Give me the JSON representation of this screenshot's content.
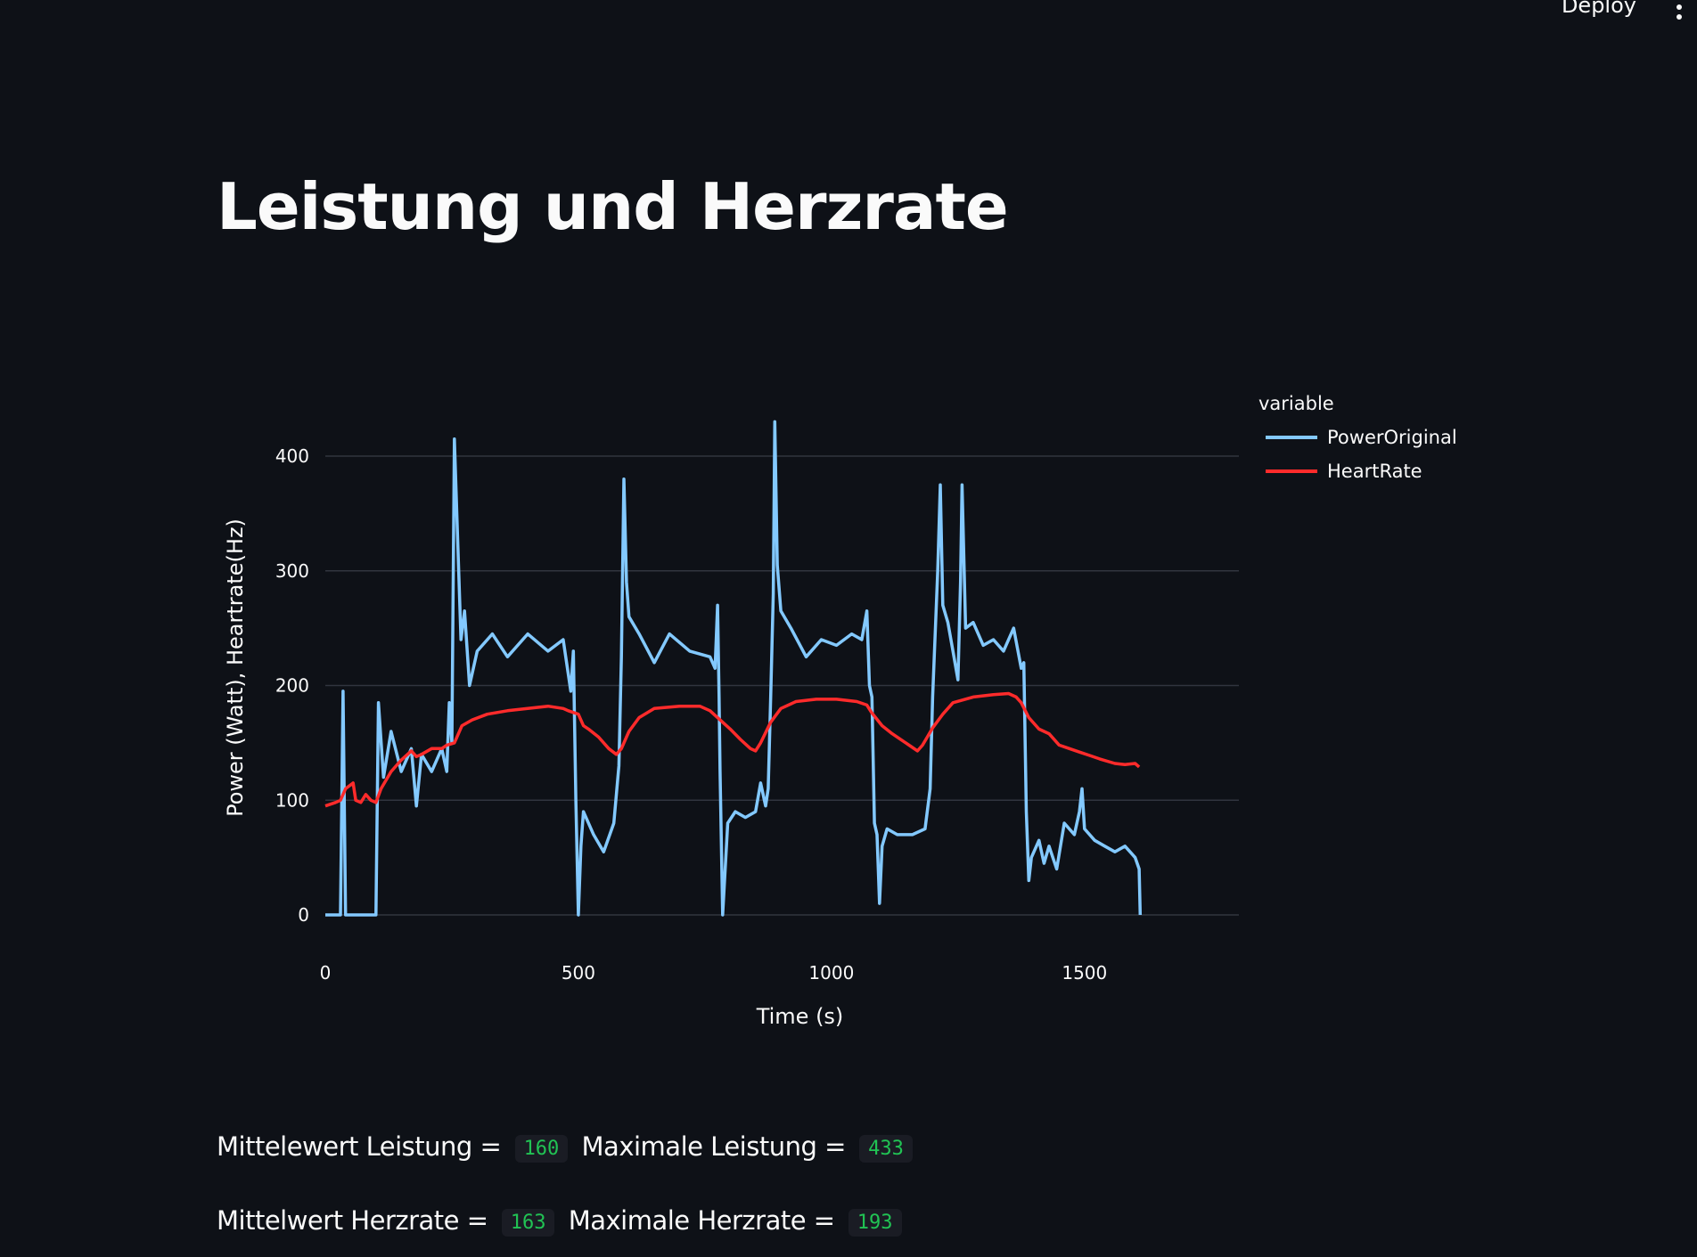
{
  "header": {
    "deploy_label": "Deploy",
    "menu_icon": "vertical-ellipsis-icon"
  },
  "page": {
    "title": "Leistung und Herzrate"
  },
  "stats": {
    "power_mean_label": "Mittelewert Leistung =",
    "power_mean_value": "160",
    "power_max_label": "Maximale Leistung =",
    "power_max_value": "433",
    "hr_mean_label": "Mittelwert Herzrate =",
    "hr_mean_value": "163",
    "hr_max_label": "Maximale Herzrate =",
    "hr_max_value": "193"
  },
  "colors": {
    "background": "#0e1117",
    "grid": "#31353f",
    "text": "#fafafa",
    "code_text": "#21c354"
  },
  "chart_data": {
    "type": "line",
    "xlabel": "Time (s)",
    "ylabel": "Power (Watt), Heartrate(Hz)",
    "xlim": [
      0,
      1805
    ],
    "ylim": [
      -18,
      440
    ],
    "xticks": [
      0,
      500,
      1000,
      1500
    ],
    "yticks": [
      0,
      100,
      200,
      300,
      400
    ],
    "grid": true,
    "legend_title": "variable",
    "legend_position": "top-right outside",
    "series": [
      {
        "name": "PowerOriginal",
        "color": "#83c9ff",
        "points": [
          [
            0,
            0
          ],
          [
            30,
            0
          ],
          [
            35,
            195
          ],
          [
            40,
            0
          ],
          [
            100,
            0
          ],
          [
            105,
            185
          ],
          [
            115,
            120
          ],
          [
            130,
            160
          ],
          [
            150,
            125
          ],
          [
            170,
            145
          ],
          [
            180,
            95
          ],
          [
            190,
            140
          ],
          [
            210,
            125
          ],
          [
            230,
            145
          ],
          [
            240,
            125
          ],
          [
            245,
            185
          ],
          [
            250,
            150
          ],
          [
            255,
            415
          ],
          [
            262,
            320
          ],
          [
            268,
            240
          ],
          [
            275,
            265
          ],
          [
            285,
            200
          ],
          [
            300,
            230
          ],
          [
            330,
            245
          ],
          [
            360,
            225
          ],
          [
            400,
            245
          ],
          [
            440,
            230
          ],
          [
            470,
            240
          ],
          [
            485,
            195
          ],
          [
            490,
            230
          ],
          [
            495,
            100
          ],
          [
            500,
            0
          ],
          [
            505,
            60
          ],
          [
            510,
            90
          ],
          [
            530,
            70
          ],
          [
            550,
            55
          ],
          [
            570,
            80
          ],
          [
            580,
            130
          ],
          [
            585,
            225
          ],
          [
            590,
            380
          ],
          [
            595,
            290
          ],
          [
            600,
            260
          ],
          [
            620,
            245
          ],
          [
            650,
            220
          ],
          [
            680,
            245
          ],
          [
            720,
            230
          ],
          [
            760,
            225
          ],
          [
            770,
            215
          ],
          [
            775,
            270
          ],
          [
            778,
            190
          ],
          [
            780,
            125
          ],
          [
            785,
            0
          ],
          [
            795,
            80
          ],
          [
            810,
            90
          ],
          [
            830,
            85
          ],
          [
            850,
            90
          ],
          [
            860,
            115
          ],
          [
            870,
            95
          ],
          [
            875,
            110
          ],
          [
            880,
            190
          ],
          [
            885,
            280
          ],
          [
            888,
            430
          ],
          [
            893,
            305
          ],
          [
            900,
            265
          ],
          [
            920,
            250
          ],
          [
            950,
            225
          ],
          [
            980,
            240
          ],
          [
            1010,
            235
          ],
          [
            1040,
            245
          ],
          [
            1060,
            240
          ],
          [
            1070,
            265
          ],
          [
            1075,
            200
          ],
          [
            1080,
            190
          ],
          [
            1085,
            80
          ],
          [
            1090,
            70
          ],
          [
            1095,
            10
          ],
          [
            1100,
            60
          ],
          [
            1110,
            75
          ],
          [
            1130,
            70
          ],
          [
            1160,
            70
          ],
          [
            1185,
            75
          ],
          [
            1195,
            110
          ],
          [
            1200,
            190
          ],
          [
            1210,
            300
          ],
          [
            1215,
            375
          ],
          [
            1220,
            270
          ],
          [
            1230,
            255
          ],
          [
            1240,
            230
          ],
          [
            1250,
            205
          ],
          [
            1255,
            290
          ],
          [
            1258,
            375
          ],
          [
            1265,
            250
          ],
          [
            1280,
            255
          ],
          [
            1300,
            235
          ],
          [
            1320,
            240
          ],
          [
            1340,
            230
          ],
          [
            1360,
            250
          ],
          [
            1375,
            215
          ],
          [
            1380,
            220
          ],
          [
            1385,
            90
          ],
          [
            1390,
            30
          ],
          [
            1395,
            50
          ],
          [
            1410,
            65
          ],
          [
            1420,
            45
          ],
          [
            1430,
            60
          ],
          [
            1445,
            40
          ],
          [
            1460,
            80
          ],
          [
            1480,
            70
          ],
          [
            1490,
            90
          ],
          [
            1495,
            110
          ],
          [
            1500,
            75
          ],
          [
            1520,
            65
          ],
          [
            1540,
            60
          ],
          [
            1560,
            55
          ],
          [
            1580,
            60
          ],
          [
            1600,
            50
          ],
          [
            1608,
            40
          ],
          [
            1610,
            0
          ]
        ]
      },
      {
        "name": "HeartRate",
        "color": "#ff2b2b",
        "points": [
          [
            0,
            95
          ],
          [
            20,
            98
          ],
          [
            30,
            100
          ],
          [
            40,
            110
          ],
          [
            55,
            115
          ],
          [
            60,
            100
          ],
          [
            70,
            98
          ],
          [
            80,
            105
          ],
          [
            90,
            100
          ],
          [
            100,
            98
          ],
          [
            110,
            110
          ],
          [
            130,
            125
          ],
          [
            150,
            135
          ],
          [
            170,
            143
          ],
          [
            180,
            138
          ],
          [
            190,
            140
          ],
          [
            210,
            145
          ],
          [
            230,
            145
          ],
          [
            240,
            148
          ],
          [
            255,
            150
          ],
          [
            270,
            165
          ],
          [
            290,
            170
          ],
          [
            320,
            175
          ],
          [
            360,
            178
          ],
          [
            400,
            180
          ],
          [
            440,
            182
          ],
          [
            470,
            180
          ],
          [
            480,
            178
          ],
          [
            500,
            175
          ],
          [
            510,
            165
          ],
          [
            520,
            162
          ],
          [
            540,
            155
          ],
          [
            560,
            145
          ],
          [
            575,
            140
          ],
          [
            585,
            145
          ],
          [
            600,
            160
          ],
          [
            620,
            172
          ],
          [
            650,
            180
          ],
          [
            700,
            182
          ],
          [
            740,
            182
          ],
          [
            760,
            178
          ],
          [
            780,
            170
          ],
          [
            800,
            162
          ],
          [
            820,
            153
          ],
          [
            840,
            145
          ],
          [
            850,
            143
          ],
          [
            860,
            150
          ],
          [
            880,
            168
          ],
          [
            900,
            180
          ],
          [
            930,
            186
          ],
          [
            970,
            188
          ],
          [
            1010,
            188
          ],
          [
            1050,
            186
          ],
          [
            1070,
            183
          ],
          [
            1080,
            176
          ],
          [
            1100,
            165
          ],
          [
            1120,
            158
          ],
          [
            1140,
            152
          ],
          [
            1160,
            146
          ],
          [
            1170,
            143
          ],
          [
            1180,
            148
          ],
          [
            1200,
            163
          ],
          [
            1220,
            175
          ],
          [
            1240,
            185
          ],
          [
            1280,
            190
          ],
          [
            1320,
            192
          ],
          [
            1350,
            193
          ],
          [
            1365,
            190
          ],
          [
            1375,
            185
          ],
          [
            1390,
            172
          ],
          [
            1410,
            162
          ],
          [
            1430,
            158
          ],
          [
            1450,
            148
          ],
          [
            1470,
            145
          ],
          [
            1490,
            142
          ],
          [
            1510,
            139
          ],
          [
            1530,
            136
          ],
          [
            1560,
            132
          ],
          [
            1580,
            131
          ],
          [
            1600,
            132
          ],
          [
            1608,
            129
          ]
        ]
      }
    ]
  }
}
